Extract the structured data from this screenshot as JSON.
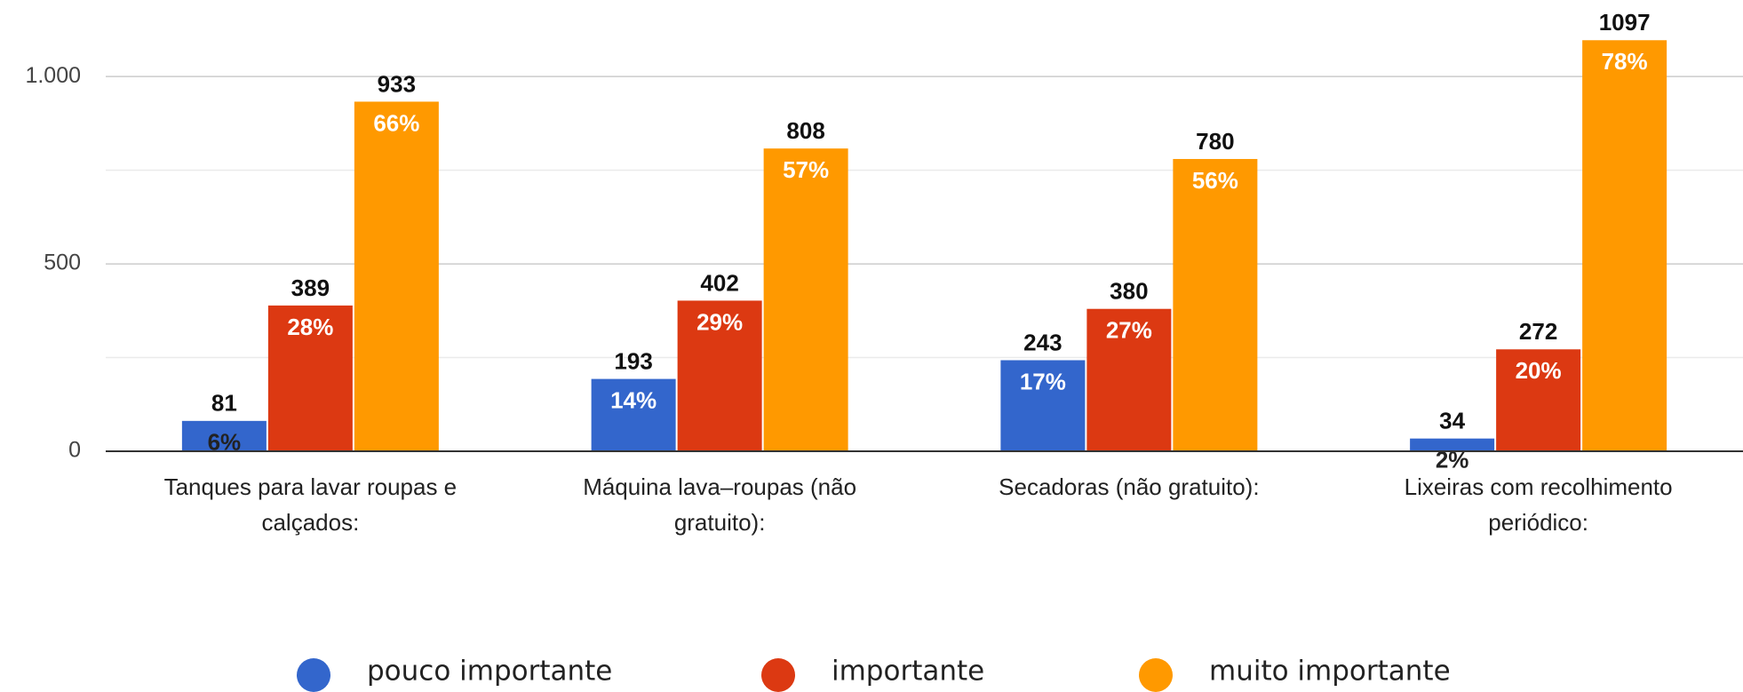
{
  "chart_data": {
    "type": "bar",
    "categories": [
      "Tanques para lavar roupas e calçados:",
      "Máquina lava–roupas (não gratuito):",
      "Secadoras (não gratuito):",
      "Lixeiras com recolhimento periódico:"
    ],
    "series": [
      {
        "name": "pouco importante",
        "color": "#3366cc",
        "values": [
          81,
          193,
          243,
          34
        ],
        "percent_labels": [
          "6%",
          "14%",
          "17%",
          "2%"
        ]
      },
      {
        "name": "importante",
        "color": "#dc3912",
        "values": [
          389,
          402,
          380,
          272
        ],
        "percent_labels": [
          "28%",
          "29%",
          "27%",
          "20%"
        ]
      },
      {
        "name": "muito importante",
        "color": "#ff9900",
        "values": [
          933,
          808,
          780,
          1097
        ],
        "percent_labels": [
          "66%",
          "57%",
          "56%",
          "78%"
        ]
      }
    ],
    "ylim": [
      0,
      1100
    ],
    "yticks": [
      0,
      500,
      {
        "value": 1000,
        "label": "1.000"
      }
    ],
    "minor_yticks": [
      250,
      750
    ],
    "grid": true,
    "legend": "bottom"
  }
}
